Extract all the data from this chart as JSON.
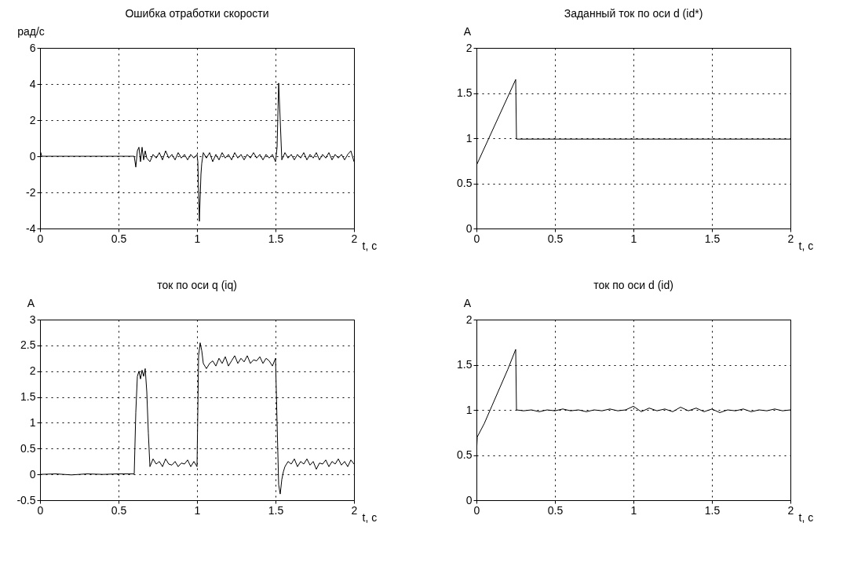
{
  "chart_data": [
    {
      "type": "line",
      "title": "Ошибка отработки скорости",
      "ylabel": "рад/с",
      "xlabel": "t, с",
      "grid": true,
      "xlim": [
        0,
        2
      ],
      "ylim": [
        -4,
        6
      ],
      "xticks": [
        0,
        0.5,
        1,
        1.5,
        2
      ],
      "yticks": [
        -4,
        -2,
        0,
        2,
        4,
        6
      ],
      "x": [
        0,
        0.005,
        0.01,
        0.6,
        0.605,
        0.61,
        0.62,
        0.63,
        0.64,
        0.65,
        0.66,
        0.67,
        0.68,
        0.7,
        0.72,
        0.74,
        0.76,
        0.78,
        0.8,
        0.82,
        0.84,
        0.86,
        0.88,
        0.9,
        0.92,
        0.94,
        0.96,
        0.98,
        1.0,
        1.005,
        1.015,
        1.025,
        1.03,
        1.04,
        1.06,
        1.08,
        1.1,
        1.12,
        1.14,
        1.16,
        1.18,
        1.2,
        1.22,
        1.24,
        1.26,
        1.28,
        1.3,
        1.32,
        1.34,
        1.36,
        1.38,
        1.4,
        1.42,
        1.44,
        1.46,
        1.48,
        1.5,
        1.51,
        1.52,
        1.53,
        1.54,
        1.56,
        1.58,
        1.6,
        1.62,
        1.64,
        1.66,
        1.68,
        1.7,
        1.72,
        1.74,
        1.76,
        1.78,
        1.8,
        1.82,
        1.84,
        1.86,
        1.88,
        1.9,
        1.92,
        1.94,
        1.96,
        1.98,
        2.0
      ],
      "series": [
        {
          "color": "#000000",
          "values": [
            0,
            0.2,
            0,
            0,
            -0.3,
            -0.6,
            0.3,
            0.5,
            -0.3,
            0.5,
            -0.2,
            0.3,
            -0.1,
            -0.3,
            0.1,
            -0.1,
            0.2,
            -0.2,
            0.3,
            -0.1,
            0.1,
            -0.2,
            0.2,
            -0.1,
            0.1,
            -0.2,
            0.1,
            -0.1,
            0.1,
            -0.3,
            -3.6,
            -1.0,
            -0.4,
            0.2,
            -0.1,
            0.2,
            -0.3,
            0.1,
            -0.2,
            0.2,
            -0.1,
            0.1,
            -0.2,
            0.2,
            -0.1,
            0.1,
            -0.2,
            0.1,
            -0.1,
            0.2,
            -0.1,
            0.1,
            -0.2,
            0.1,
            -0.1,
            0.1,
            -0.3,
            0.5,
            4.05,
            2.0,
            -0.2,
            0.2,
            -0.1,
            0.1,
            -0.2,
            0.1,
            -0.1,
            0.2,
            -0.2,
            0.1,
            -0.1,
            0.2,
            -0.2,
            0.1,
            -0.1,
            0.2,
            -0.2,
            0.1,
            -0.1,
            0.1,
            -0.2,
            0.1,
            0.3,
            -0.3
          ]
        }
      ]
    },
    {
      "type": "line",
      "title": "Заданный ток по оси d (id*)",
      "ylabel": "А",
      "xlabel": "t, с",
      "grid": true,
      "xlim": [
        0,
        2
      ],
      "ylim": [
        0,
        2
      ],
      "xticks": [
        0,
        0.5,
        1,
        1.5,
        2
      ],
      "yticks": [
        0,
        0.5,
        1,
        1.5,
        2
      ],
      "x": [
        0,
        0.25,
        0.255,
        2
      ],
      "series": [
        {
          "color": "#000000",
          "values": [
            0.7,
            1.65,
            0.99,
            0.99
          ]
        }
      ]
    },
    {
      "type": "line",
      "title": "ток по оси q (iq)",
      "ylabel": "А",
      "xlabel": "t, с",
      "grid": true,
      "xlim": [
        0,
        2
      ],
      "ylim": [
        -0.5,
        3
      ],
      "xticks": [
        0,
        0.5,
        1,
        1.5,
        2
      ],
      "yticks": [
        -0.5,
        0,
        0.5,
        1,
        1.5,
        2,
        2.5,
        3
      ],
      "x": [
        0,
        0.1,
        0.2,
        0.3,
        0.4,
        0.5,
        0.6,
        0.61,
        0.62,
        0.63,
        0.64,
        0.65,
        0.66,
        0.67,
        0.68,
        0.69,
        0.7,
        0.72,
        0.74,
        0.76,
        0.78,
        0.8,
        0.82,
        0.84,
        0.86,
        0.88,
        0.9,
        0.92,
        0.94,
        0.96,
        0.98,
        1.0,
        1.01,
        1.02,
        1.03,
        1.04,
        1.05,
        1.06,
        1.08,
        1.1,
        1.12,
        1.14,
        1.16,
        1.18,
        1.2,
        1.22,
        1.24,
        1.26,
        1.28,
        1.3,
        1.32,
        1.34,
        1.36,
        1.38,
        1.4,
        1.42,
        1.44,
        1.46,
        1.48,
        1.5,
        1.51,
        1.52,
        1.53,
        1.54,
        1.55,
        1.56,
        1.58,
        1.6,
        1.62,
        1.64,
        1.66,
        1.68,
        1.7,
        1.72,
        1.74,
        1.76,
        1.78,
        1.8,
        1.82,
        1.84,
        1.86,
        1.88,
        1.9,
        1.92,
        1.94,
        1.96,
        1.98,
        2.0
      ],
      "series": [
        {
          "color": "#000000",
          "values": [
            0,
            0.01,
            -0.01,
            0.01,
            0,
            0.01,
            0.01,
            1.2,
            1.9,
            2.0,
            1.85,
            2.02,
            1.9,
            2.05,
            1.6,
            0.8,
            0.15,
            0.3,
            0.2,
            0.25,
            0.15,
            0.3,
            0.2,
            0.18,
            0.25,
            0.15,
            0.22,
            0.2,
            0.28,
            0.15,
            0.25,
            0.15,
            2.3,
            2.55,
            2.4,
            2.15,
            2.1,
            2.05,
            2.15,
            2.2,
            2.1,
            2.25,
            2.15,
            2.28,
            2.1,
            2.2,
            2.3,
            2.15,
            2.25,
            2.18,
            2.3,
            2.15,
            2.22,
            2.2,
            2.28,
            2.15,
            2.25,
            2.2,
            2.1,
            2.25,
            1.0,
            -0.2,
            -0.38,
            -0.1,
            0.05,
            0.15,
            0.25,
            0.2,
            0.3,
            0.15,
            0.25,
            0.2,
            0.3,
            0.18,
            0.25,
            0.1,
            0.22,
            0.2,
            0.28,
            0.15,
            0.25,
            0.2,
            0.3,
            0.18,
            0.25,
            0.15,
            0.28,
            0.2
          ]
        }
      ]
    },
    {
      "type": "line",
      "title": "ток по оси d (id)",
      "ylabel": "А",
      "xlabel": "t, с",
      "grid": true,
      "xlim": [
        0,
        2
      ],
      "ylim": [
        0,
        2
      ],
      "xticks": [
        0,
        0.5,
        1,
        1.5,
        2
      ],
      "yticks": [
        0,
        0.5,
        1,
        1.5,
        2
      ],
      "x": [
        0,
        0.005,
        0.05,
        0.1,
        0.15,
        0.2,
        0.25,
        0.255,
        0.3,
        0.35,
        0.4,
        0.45,
        0.5,
        0.55,
        0.6,
        0.65,
        0.7,
        0.75,
        0.8,
        0.85,
        0.9,
        0.95,
        1.0,
        1.05,
        1.1,
        1.15,
        1.2,
        1.25,
        1.3,
        1.35,
        1.4,
        1.45,
        1.5,
        1.55,
        1.6,
        1.65,
        1.7,
        1.75,
        1.8,
        1.85,
        1.9,
        1.95,
        2.0
      ],
      "series": [
        {
          "color": "#000000",
          "values": [
            0.5,
            0.7,
            0.85,
            1.05,
            1.25,
            1.45,
            1.67,
            1.0,
            0.99,
            1.0,
            0.98,
            1.0,
            0.99,
            1.01,
            0.99,
            1.0,
            0.98,
            1.0,
            0.99,
            1.01,
            0.99,
            1.0,
            1.04,
            0.98,
            1.02,
            0.99,
            1.01,
            0.98,
            1.03,
            0.99,
            1.02,
            0.98,
            1.01,
            0.97,
            1.0,
            0.99,
            1.01,
            0.98,
            1.0,
            0.99,
            1.01,
            0.99,
            1.0
          ]
        }
      ]
    }
  ]
}
